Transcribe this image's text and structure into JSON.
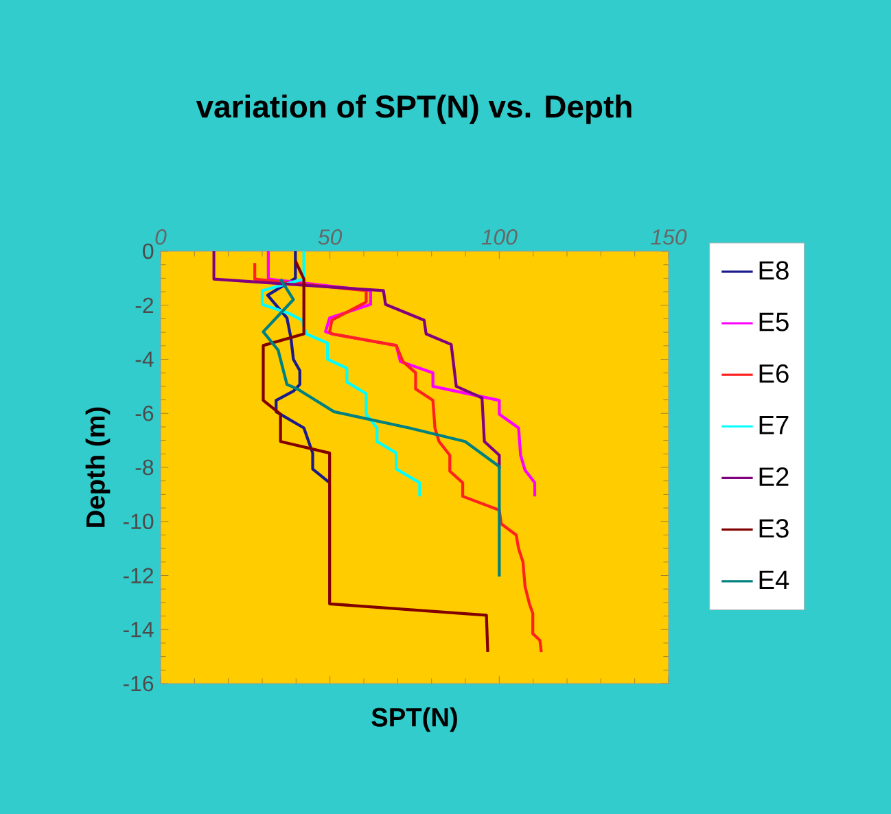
{
  "chart_data": {
    "type": "line",
    "title": "variation of SPT(N) vs. Depth",
    "xlabel": "SPT(N)",
    "ylabel": "Depth (m)",
    "xlim": [
      0,
      150
    ],
    "xticks": [
      0,
      50,
      100,
      150
    ],
    "ylim": [
      -16,
      0
    ],
    "yticks": [
      -16,
      -14,
      -12,
      -10,
      -8,
      -6,
      -4,
      -2,
      0
    ],
    "grid": false,
    "legend": "right",
    "marker": "none",
    "line_style": "solid",
    "series": [
      {
        "name": "E8",
        "color": "#1a1a8c",
        "x": [
          39.8,
          39.8,
          31.6,
          37.3,
          38.5,
          39.2,
          41.1,
          41.1,
          39.2,
          34.1,
          34.1,
          42.3,
          44.9,
          44.9,
          49.9
        ],
        "values": [
          0,
          -1.0,
          -1.63,
          -2.47,
          -3.23,
          -4.0,
          -4.42,
          -4.93,
          -5.18,
          -5.52,
          -5.94,
          -6.54,
          -7.47,
          -8.06,
          -8.57
        ]
      },
      {
        "name": "E5",
        "color": "#ff00ff",
        "x": [
          31.8,
          31.8,
          62,
          62,
          49.9,
          48.7,
          50.6,
          69.6,
          70.8,
          80.4,
          80.4,
          100,
          100,
          105.7,
          106.3,
          107.6,
          110.5,
          110.5
        ],
        "values": [
          0,
          -1.03,
          -1.46,
          -1.97,
          -2.47,
          -2.98,
          -3.06,
          -3.49,
          -4.08,
          -4.5,
          -5.0,
          -5.52,
          -6.03,
          -6.54,
          -7.55,
          -8.1,
          -8.57,
          -9.07
        ]
      },
      {
        "name": "E6",
        "color": "#ff2020",
        "x": [
          27.8,
          27.8,
          60.7,
          60.7,
          50.6,
          49.9,
          50.6,
          69.6,
          71.5,
          75.3,
          75.3,
          80.4,
          81,
          82.2,
          85.4,
          85.4,
          89.2,
          89.2,
          100,
          100.6,
          105,
          105.7,
          107,
          107.6,
          108.9,
          109.9,
          109.9,
          112,
          112.4
        ],
        "values": [
          -0.44,
          -1.03,
          -1.46,
          -1.88,
          -2.55,
          -2.98,
          -3.06,
          -3.49,
          -4.08,
          -4.5,
          -5.1,
          -5.52,
          -6.54,
          -7.04,
          -7.55,
          -8.14,
          -8.57,
          -9.07,
          -9.58,
          -10.09,
          -10.5,
          -11.0,
          -11.5,
          -12.4,
          -13.05,
          -13.4,
          -14.15,
          -14.4,
          -14.83
        ]
      },
      {
        "name": "E7",
        "color": "#00ffff",
        "x": [
          42.3,
          42.3,
          30,
          30,
          37.9,
          41.7,
          43,
          49.3,
          49.3,
          55,
          55,
          60.7,
          60.7,
          63.9,
          63.9,
          69.6,
          69.6,
          76.5,
          76.5
        ],
        "values": [
          0,
          -1.03,
          -1.46,
          -1.97,
          -2.3,
          -2.55,
          -3.06,
          -3.4,
          -4.0,
          -4.33,
          -4.84,
          -5.27,
          -6.03,
          -6.54,
          -7.04,
          -7.47,
          -8.06,
          -8.57,
          -9.07
        ]
      },
      {
        "name": "E2",
        "color": "#800080",
        "x": [
          15.7,
          15.7,
          65.8,
          66.4,
          77.8,
          78.4,
          85.8,
          87.3,
          94.9,
          95.6,
          100,
          100
        ],
        "values": [
          0,
          -1.03,
          -1.46,
          -1.97,
          -2.55,
          -3.06,
          -3.45,
          -5.0,
          -5.43,
          -7.04,
          -7.55,
          -8.06
        ]
      },
      {
        "name": "E3",
        "color": "#800000",
        "x": [
          39.8,
          42.3,
          42.3,
          30.3,
          30.3,
          35.4,
          35.4,
          49.9,
          49.9,
          96.2,
          96.6
        ],
        "values": [
          -0.36,
          -1.03,
          -3.06,
          -3.49,
          -5.52,
          -6.03,
          -7.04,
          -7.47,
          -13.05,
          -13.47,
          -14.83
        ]
      },
      {
        "name": "E4",
        "color": "#008080",
        "x": [
          35.4,
          39.2,
          35.4,
          30.3,
          34.7,
          37.3,
          40.4,
          51.2,
          73.4,
          89.9,
          100,
          100
        ],
        "values": [
          -1.03,
          -1.79,
          -2.3,
          -2.98,
          -3.66,
          -4.93,
          -5.1,
          -5.94,
          -6.54,
          -7.04,
          -7.97,
          -12.04
        ]
      }
    ]
  }
}
